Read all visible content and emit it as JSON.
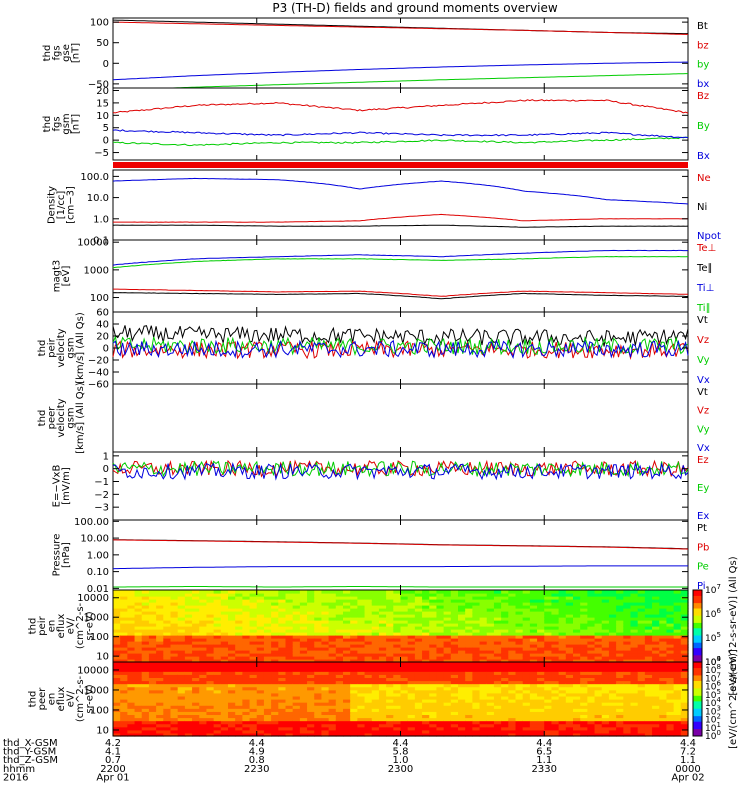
{
  "title": "P3 (TH-D) fields and ground moments overview",
  "chart_data": [
    {
      "type": "line",
      "ylabel": [
        "thd",
        "fgs",
        "gse",
        "[nT]"
      ],
      "ylim": [
        -60,
        110
      ],
      "yticks": [
        {
          "v": 100,
          "t": "100"
        },
        {
          "v": 50,
          "t": "50"
        },
        {
          "v": 0,
          "t": "0"
        },
        {
          "v": -50,
          "t": "−50"
        }
      ],
      "series": [
        {
          "name": "Bt",
          "color": "#000000",
          "values": [
            105,
            100,
            95,
            90,
            85,
            80,
            75,
            72
          ]
        },
        {
          "name": "bz",
          "color": "#dd0000",
          "values": [
            100,
            96,
            92,
            88,
            84,
            80,
            75,
            70
          ]
        },
        {
          "name": "by",
          "color": "#00cc00",
          "values": [
            -65,
            -58,
            -52,
            -46,
            -40,
            -35,
            -30,
            -25
          ]
        },
        {
          "name": "bx",
          "color": "#0000dd",
          "values": [
            -40,
            -30,
            -22,
            -15,
            -9,
            -4,
            0,
            3
          ]
        }
      ]
    },
    {
      "type": "line",
      "ylabel": [
        "thd",
        "fgs",
        "gsm",
        "[nT]"
      ],
      "ylim": [
        -8,
        21
      ],
      "yticks": [
        {
          "v": 20,
          "t": "20"
        },
        {
          "v": 15,
          "t": "15"
        },
        {
          "v": 10,
          "t": "10"
        },
        {
          "v": 5,
          "t": "5"
        },
        {
          "v": 0,
          "t": "0"
        },
        {
          "v": -5,
          "t": "−5"
        }
      ],
      "series": [
        {
          "name": "Bz",
          "color": "#dd0000",
          "values": [
            11,
            14,
            15,
            12,
            14,
            16,
            16,
            11
          ]
        },
        {
          "name": "By",
          "color": "#00cc00",
          "values": [
            -1,
            -2,
            -1,
            -1,
            0,
            -1,
            0,
            1
          ]
        },
        {
          "name": "Bx",
          "color": "#0000dd",
          "values": [
            4,
            3,
            2,
            3,
            2,
            2,
            3,
            1
          ]
        }
      ]
    },
    {
      "type": "line",
      "ylabel": [
        "Density",
        "[1/cc]",
        "[cm−3]"
      ],
      "log": true,
      "ylim": [
        0.1,
        200
      ],
      "yticks": [
        {
          "v": 100,
          "t": "100.0"
        },
        {
          "v": 10,
          "t": "10.0"
        },
        {
          "v": 1,
          "t": "1.0"
        },
        {
          "v": 0.1,
          "t": "0.1"
        }
      ],
      "series": [
        {
          "name": "Ne",
          "color": "#dd0000",
          "values": [
            0.7,
            0.7,
            0.7,
            0.8,
            1.6,
            0.8,
            1.0,
            1.0
          ]
        },
        {
          "name": "Ni",
          "color": "#000000",
          "values": [
            0.5,
            0.5,
            0.45,
            0.45,
            0.5,
            0.4,
            0.45,
            0.45
          ]
        },
        {
          "name": "Npot",
          "color": "#0000dd",
          "values": [
            60,
            80,
            70,
            25,
            60,
            20,
            8,
            5
          ]
        }
      ]
    },
    {
      "type": "line",
      "ylabel": [
        "magt3",
        "[eV]"
      ],
      "log": true,
      "ylim": [
        30,
        12000
      ],
      "yticks": [
        {
          "v": 10000,
          "t": "10000"
        },
        {
          "v": 1000,
          "t": "1000"
        },
        {
          "v": 100,
          "t": "100"
        }
      ],
      "series": [
        {
          "name": "Te⊥",
          "color": "#dd0000",
          "values": [
            200,
            180,
            160,
            170,
            110,
            170,
            150,
            130
          ]
        },
        {
          "name": "Te∥",
          "color": "#000000",
          "values": [
            150,
            140,
            130,
            140,
            90,
            140,
            120,
            110
          ]
        },
        {
          "name": "Ti⊥",
          "color": "#0000dd",
          "values": [
            1500,
            2500,
            3000,
            3500,
            3000,
            4000,
            5000,
            5000
          ]
        },
        {
          "name": "Ti∥",
          "color": "#00cc00",
          "values": [
            1200,
            2000,
            2500,
            2500,
            2200,
            2500,
            3000,
            3000
          ]
        }
      ]
    },
    {
      "type": "line",
      "ylabel": [
        "thd",
        "peir",
        "velocity",
        "gsm",
        "[km/s] (All Qs)"
      ],
      "ylim": [
        -60,
        60
      ],
      "yticks": [
        {
          "v": 60,
          "t": "60"
        },
        {
          "v": 40,
          "t": "40"
        },
        {
          "v": 20,
          "t": "20"
        },
        {
          "v": 0,
          "t": "0"
        },
        {
          "v": -20,
          "t": "−20"
        },
        {
          "v": -40,
          "t": "−40"
        },
        {
          "v": -60,
          "t": "−60"
        }
      ],
      "series": [
        {
          "name": "Vt",
          "color": "#000000",
          "values": [
            25,
            22,
            22,
            20,
            18,
            18,
            16,
            20
          ]
        },
        {
          "name": "Vz",
          "color": "#dd0000",
          "values": [
            -3,
            -3,
            -3,
            -3,
            -3,
            -3,
            -3,
            -3
          ]
        },
        {
          "name": "Vy",
          "color": "#00cc00",
          "values": [
            5,
            4,
            4,
            3,
            3,
            3,
            3,
            4
          ]
        },
        {
          "name": "Vx",
          "color": "#0000dd",
          "values": [
            -2,
            -2,
            -2,
            -2,
            -2,
            -2,
            -2,
            -2
          ]
        }
      ]
    },
    {
      "type": "line",
      "ylabel": [
        "thd",
        "peer",
        "velocity",
        "gsm",
        "[km/s] (All Qs)"
      ],
      "ylim": [
        -1,
        1
      ],
      "yticks": [],
      "series": [
        {
          "name": "Vt",
          "color": "#000000",
          "values": []
        },
        {
          "name": "Vz",
          "color": "#dd0000",
          "values": []
        },
        {
          "name": "Vy",
          "color": "#00cc00",
          "values": []
        },
        {
          "name": "Vx",
          "color": "#0000dd",
          "values": []
        }
      ]
    },
    {
      "type": "line",
      "ylabel": [
        "E=−VxB",
        "[mV/m]"
      ],
      "ylim": [
        -4,
        1.3
      ],
      "yticks": [
        {
          "v": 1,
          "t": "1"
        },
        {
          "v": 0,
          "t": "0"
        },
        {
          "v": -1,
          "t": "−1"
        },
        {
          "v": -2,
          "t": "−2"
        },
        {
          "v": -3,
          "t": "−3"
        }
      ],
      "series": [
        {
          "name": "Ez",
          "color": "#dd0000",
          "values": [
            0,
            0,
            0,
            0,
            0,
            0,
            0,
            0
          ]
        },
        {
          "name": "Ey",
          "color": "#00cc00",
          "values": [
            0,
            0,
            0,
            0,
            0,
            0,
            0,
            0
          ]
        },
        {
          "name": "Ex",
          "color": "#0000dd",
          "values": [
            -0.2,
            -0.2,
            -0.2,
            -0.2,
            -0.2,
            -0.2,
            -0.2,
            -0.2
          ]
        }
      ]
    },
    {
      "type": "line",
      "ylabel": [
        "Pressure",
        "[nPa]"
      ],
      "log": true,
      "ylim": [
        0.008,
        120
      ],
      "yticks": [
        {
          "v": 100,
          "t": "100.00"
        },
        {
          "v": 10,
          "t": "10.00"
        },
        {
          "v": 1,
          "t": "1.00"
        },
        {
          "v": 0.1,
          "t": "0.10"
        },
        {
          "v": 0.01,
          "t": "0.01"
        }
      ],
      "series": [
        {
          "name": "Pt",
          "color": "#000000",
          "values": [
            8,
            7,
            6,
            5,
            4,
            3.5,
            3,
            2.3
          ]
        },
        {
          "name": "Pb",
          "color": "#dd0000",
          "values": [
            7.8,
            6.8,
            5.8,
            4.9,
            3.9,
            3.4,
            2.9,
            2.2
          ]
        },
        {
          "name": "Pe",
          "color": "#00cc00",
          "values": [
            0.012,
            0.013,
            0.012,
            0.013,
            0.012,
            0.012,
            0.012,
            0.012
          ]
        },
        {
          "name": "Pi",
          "color": "#0000dd",
          "values": [
            0.15,
            0.18,
            0.2,
            0.2,
            0.2,
            0.21,
            0.22,
            0.22
          ]
        }
      ]
    },
    {
      "type": "heatmap",
      "ylabel": [
        "thd",
        "peir",
        "en",
        "eflux",
        "eV/",
        "(cm^2-s-",
        "sr-eV)"
      ],
      "log": true,
      "ylim": [
        5,
        25000
      ],
      "yticks": [
        {
          "v": 10000,
          "t": "10000"
        },
        {
          "v": 1000,
          "t": "1000"
        },
        {
          "v": 100,
          "t": "100"
        },
        {
          "v": 10,
          "t": "10"
        }
      ],
      "colorbar": {
        "label": "[eV/(cm^2-s-sr-eV)] (All Qs)",
        "min_exp": 4,
        "max_exp": 7
      }
    },
    {
      "type": "heatmap",
      "ylabel": [
        "thd",
        "peer",
        "en",
        "eflux",
        "eV/",
        "(cm^2-s-",
        "sr-eV)"
      ],
      "log": true,
      "ylim": [
        5,
        25000
      ],
      "yticks": [
        {
          "v": 10000,
          "t": "10000"
        },
        {
          "v": 1000,
          "t": "1000"
        },
        {
          "v": 100,
          "t": "100"
        },
        {
          "v": 10,
          "t": "10"
        }
      ],
      "colorbar": {
        "label": "[eV/(cm^2-s-sr-eV)]",
        "min_exp": 0,
        "max_exp": 9
      }
    }
  ],
  "xaxis": {
    "rows": [
      {
        "label": "thd_X-GSM",
        "values": [
          "4.2",
          "4.4",
          "4.4",
          "4.4",
          "4.4"
        ]
      },
      {
        "label": "thd_Y-GSM",
        "values": [
          "4.1",
          "4.9",
          "5.8",
          "6.5",
          "7.2"
        ]
      },
      {
        "label": "thd_Z-GSM",
        "values": [
          "0.7",
          "0.8",
          "1.0",
          "1.1",
          "1.1"
        ]
      },
      {
        "label": "hhmm",
        "values": [
          "2200",
          "2230",
          "2300",
          "2330",
          "0000"
        ]
      },
      {
        "label": "2016",
        "values": [
          "Apr 01",
          "",
          "",
          "",
          "Apr 02"
        ]
      }
    ]
  }
}
